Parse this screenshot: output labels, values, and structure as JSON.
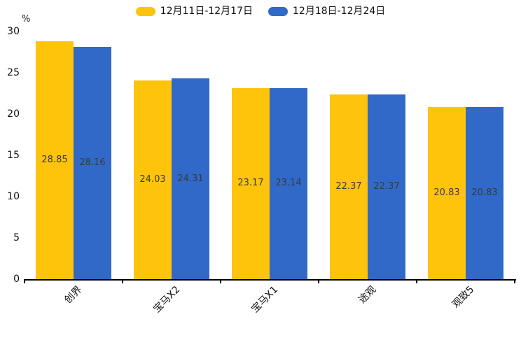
{
  "chart_data": {
    "type": "bar",
    "title": "",
    "unit_label": "%",
    "categories": [
      "创界",
      "宝马X2",
      "宝马X1",
      "途观",
      "观致5"
    ],
    "series": [
      {
        "name": "12月11日-12月17日",
        "color": "#FDC40B",
        "values": [
          28.85,
          24.03,
          23.17,
          22.37,
          20.83
        ]
      },
      {
        "name": "12月18日-12月24日",
        "color": "#3169C9",
        "values": [
          28.16,
          24.31,
          23.14,
          22.37,
          20.83
        ]
      }
    ],
    "ylim": [
      0,
      30
    ],
    "yticks": [
      0,
      5,
      10,
      15,
      20,
      25,
      30
    ],
    "legend_position": "top-center",
    "grid": false,
    "value_labels_shown": true,
    "value_label_color": "#3a3a3a",
    "axis_color": "#000000"
  }
}
